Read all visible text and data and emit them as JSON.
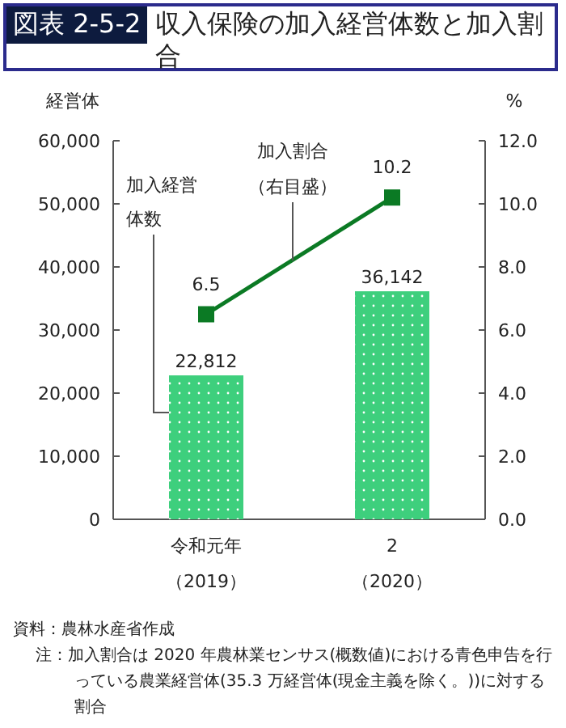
{
  "chart_data": {
    "type": "bar",
    "title": "図表 2-5-2",
    "subtitle": "収入保険の加入経営体数と加入割合",
    "ylabel": "経営体",
    "y2label": "%",
    "categories": [
      "令和元年（2019）",
      "2（2020）"
    ],
    "series": [
      {
        "name": "加入経営体数",
        "color": "#3ecf7d",
        "values": [
          22812,
          36142
        ],
        "value_labels": [
          "22,812",
          "36,142"
        ]
      },
      {
        "name": "加入割合（右目盛）",
        "type": "line",
        "axis": "y2",
        "color": "#0b7a24",
        "marker": "square",
        "line_style": "solid",
        "values": [
          6.5,
          10.2
        ],
        "value_labels": [
          "6.5",
          "10.2"
        ]
      }
    ],
    "ylim": [
      0,
      60000
    ],
    "yticks": [
      0,
      {
        "value": 10000,
        "label": "10,000"
      },
      {
        "value": 20000,
        "label": "20,000"
      },
      {
        "value": 30000,
        "label": "30,000"
      },
      {
        "value": 40000,
        "label": "40,000"
      },
      {
        "value": 50000,
        "label": "50,000"
      },
      {
        "value": 60000,
        "label": "60,000"
      }
    ],
    "y2lim": [
      0,
      12
    ],
    "y2ticks": [
      {
        "value": 0,
        "label": "0.0"
      },
      {
        "value": 2,
        "label": "2.0"
      },
      {
        "value": 4,
        "label": "4.0"
      },
      {
        "value": 6,
        "label": "6.0"
      },
      {
        "value": 8,
        "label": "8.0"
      },
      {
        "value": 10,
        "label": "10.0"
      },
      {
        "value": 12,
        "label": "12.0"
      }
    ],
    "grid": false,
    "annotations": [
      "資料：農林水産省作成",
      "注：加入割合は 2020 年農林業センサス(概数値)における青色申告を行っている農業経営体(35.3 万経営体(現金主義を除く。))に対する割合"
    ]
  }
}
